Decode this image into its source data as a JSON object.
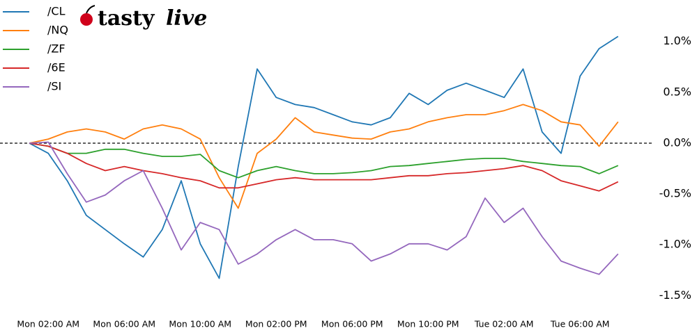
{
  "chart_data": {
    "type": "line",
    "logo": {
      "part1": "tasty",
      "part2": "live"
    },
    "categories": [
      null,
      "Mon 02:00 AM",
      null,
      null,
      null,
      "Mon 06:00 AM",
      null,
      null,
      null,
      "Mon 10:00 AM",
      null,
      null,
      null,
      "Mon 02:00 PM",
      null,
      null,
      null,
      "Mon 06:00 PM",
      null,
      null,
      null,
      "Mon 10:00 PM",
      null,
      null,
      null,
      "Tue 02:00 AM",
      null,
      null,
      null,
      "Tue 06:00 AM",
      null,
      null
    ],
    "series": [
      {
        "name": "/CL",
        "color": "#1f77b4",
        "values": [
          0,
          -0.1,
          -0.37,
          -0.71,
          -0.85,
          -0.99,
          -1.12,
          -0.85,
          -0.37,
          -0.99,
          -1.33,
          -0.23,
          0.73,
          0.45,
          0.38,
          0.35,
          0.28,
          0.21,
          0.18,
          0.25,
          0.49,
          0.38,
          0.52,
          0.59,
          0.52,
          0.45,
          0.73,
          0.11,
          -0.1,
          0.66,
          0.93,
          1.05
        ]
      },
      {
        "name": "/NQ",
        "color": "#ff7f0e",
        "values": [
          0,
          0.04,
          0.11,
          0.14,
          0.11,
          0.04,
          0.14,
          0.18,
          0.14,
          0.04,
          -0.34,
          -0.64,
          -0.1,
          0.04,
          0.25,
          0.11,
          0.08,
          0.05,
          0.04,
          0.11,
          0.14,
          0.21,
          0.25,
          0.28,
          0.28,
          0.32,
          0.38,
          0.32,
          0.21,
          0.18,
          -0.03,
          0.21
        ]
      },
      {
        "name": "/ZF",
        "color": "#2ca02c",
        "values": [
          0,
          -0.03,
          -0.1,
          -0.1,
          -0.06,
          -0.06,
          -0.1,
          -0.13,
          -0.13,
          -0.11,
          -0.27,
          -0.34,
          -0.27,
          -0.23,
          -0.27,
          -0.3,
          -0.3,
          -0.29,
          -0.27,
          -0.23,
          -0.22,
          -0.2,
          -0.18,
          -0.16,
          -0.15,
          -0.15,
          -0.18,
          -0.2,
          -0.22,
          -0.23,
          -0.3,
          -0.22
        ]
      },
      {
        "name": "/6E",
        "color": "#d62728",
        "values": [
          0,
          -0.03,
          -0.1,
          -0.2,
          -0.27,
          -0.23,
          -0.27,
          -0.3,
          -0.34,
          -0.37,
          -0.44,
          -0.44,
          -0.4,
          -0.36,
          -0.34,
          -0.36,
          -0.36,
          -0.36,
          -0.36,
          -0.34,
          -0.32,
          -0.32,
          -0.3,
          -0.29,
          -0.27,
          -0.25,
          -0.22,
          -0.27,
          -0.37,
          -0.42,
          -0.47,
          -0.38
        ]
      },
      {
        "name": "/SI",
        "color": "#9467bd",
        "values": [
          0,
          0.01,
          -0.3,
          -0.58,
          -0.51,
          -0.37,
          -0.27,
          -0.64,
          -1.05,
          -0.78,
          -0.85,
          -1.19,
          -1.09,
          -0.95,
          -0.85,
          -0.95,
          -0.95,
          -0.99,
          -1.16,
          -1.09,
          -0.99,
          -0.99,
          -1.05,
          -0.92,
          -0.54,
          -0.78,
          -0.64,
          -0.92,
          -1.16,
          -1.23,
          -1.29,
          -1.09
        ]
      }
    ],
    "ylim": [
      -1.6,
      1.34
    ],
    "yticks": [
      {
        "value": 1.0,
        "label": "1.0%"
      },
      {
        "value": 0.5,
        "label": "0.5%"
      },
      {
        "value": 0.0,
        "label": "0.0%"
      },
      {
        "value": -0.5,
        "label": "-0.5%"
      },
      {
        "value": -1.0,
        "label": "-1.0%"
      },
      {
        "value": -1.5,
        "label": "-1.5%"
      }
    ],
    "zero_line": 0
  }
}
